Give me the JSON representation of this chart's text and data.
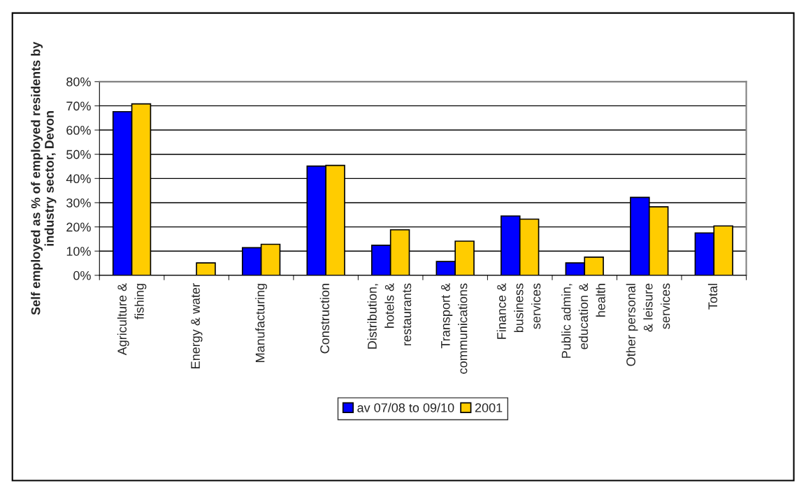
{
  "chart_data": {
    "type": "bar",
    "ylabel": "Self employed as % of employed residents by industry sector, Devon",
    "categories": [
      "Agriculture & fishing",
      "Energy & water",
      "Manufacturing",
      "Construction",
      "Distribution, hotels & restaurants",
      "Transport & communications",
      "Finance & business services",
      "Public admin, education & health",
      "Other personal & leisure services",
      "Total"
    ],
    "series": [
      {
        "name": "av 07/08 to 09/10",
        "color": "#0000ff",
        "values": [
          67.6,
          null,
          11.4,
          45.1,
          12.4,
          5.7,
          24.5,
          5.1,
          32.2,
          17.5
        ]
      },
      {
        "name": "2001",
        "color": "#ffcc00",
        "values": [
          70.8,
          5.1,
          12.8,
          45.4,
          18.8,
          14.1,
          23.2,
          7.5,
          28.3,
          20.4
        ]
      }
    ],
    "ylim": [
      0,
      80
    ],
    "yticks": [
      {
        "value": 0,
        "label": "0%"
      },
      {
        "value": 10,
        "label": "10%"
      },
      {
        "value": 20,
        "label": "20%"
      },
      {
        "value": 30,
        "label": "30%"
      },
      {
        "value": 40,
        "label": "40%"
      },
      {
        "value": 50,
        "label": "50%"
      },
      {
        "value": 60,
        "label": "60%"
      },
      {
        "value": 70,
        "label": "70%"
      },
      {
        "value": 80,
        "label": "80%"
      }
    ],
    "grid": "y",
    "legend": "bottom"
  }
}
